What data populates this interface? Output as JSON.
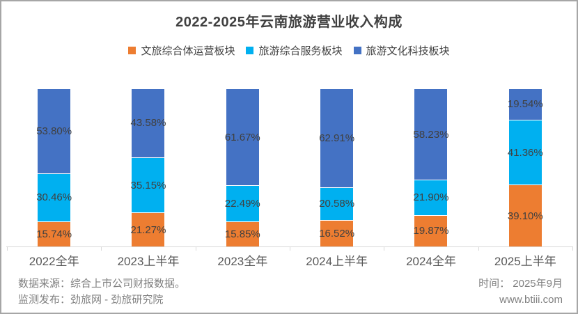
{
  "chart_data": {
    "type": "bar",
    "stacked": true,
    "percent_stacked": true,
    "title": "2022-2025年云南旅游营业收入构成",
    "categories": [
      "2022全年",
      "2023上半年",
      "2023全年",
      "2024上半年",
      "2024全年",
      "2025上半年"
    ],
    "series": [
      {
        "name": "文旅综合体运营板块",
        "color": "#ED7D31",
        "values": [
          15.74,
          21.27,
          15.85,
          16.52,
          19.87,
          39.1
        ]
      },
      {
        "name": "旅游综合服务板块",
        "color": "#00B0F0",
        "values": [
          30.46,
          35.15,
          22.49,
          20.58,
          21.9,
          41.36
        ]
      },
      {
        "name": "旅游文化科技板块",
        "color": "#4472C4",
        "values": [
          53.8,
          43.58,
          61.67,
          62.91,
          58.23,
          19.54
        ]
      }
    ],
    "unit": "%",
    "ylim": [
      0,
      100
    ],
    "grid": false,
    "legend_position": "top",
    "data_label_format": "0.00%",
    "label_color": "#404040",
    "axis_color": "#d9d9d9"
  },
  "footer": {
    "source_line1": "数据来源：综合上市公司财报数据。",
    "source_line2": "监测发布：劲旅网 - 劲旅研究院",
    "time_label": "时间： 2025年9月",
    "website": "www.btiii.com"
  }
}
